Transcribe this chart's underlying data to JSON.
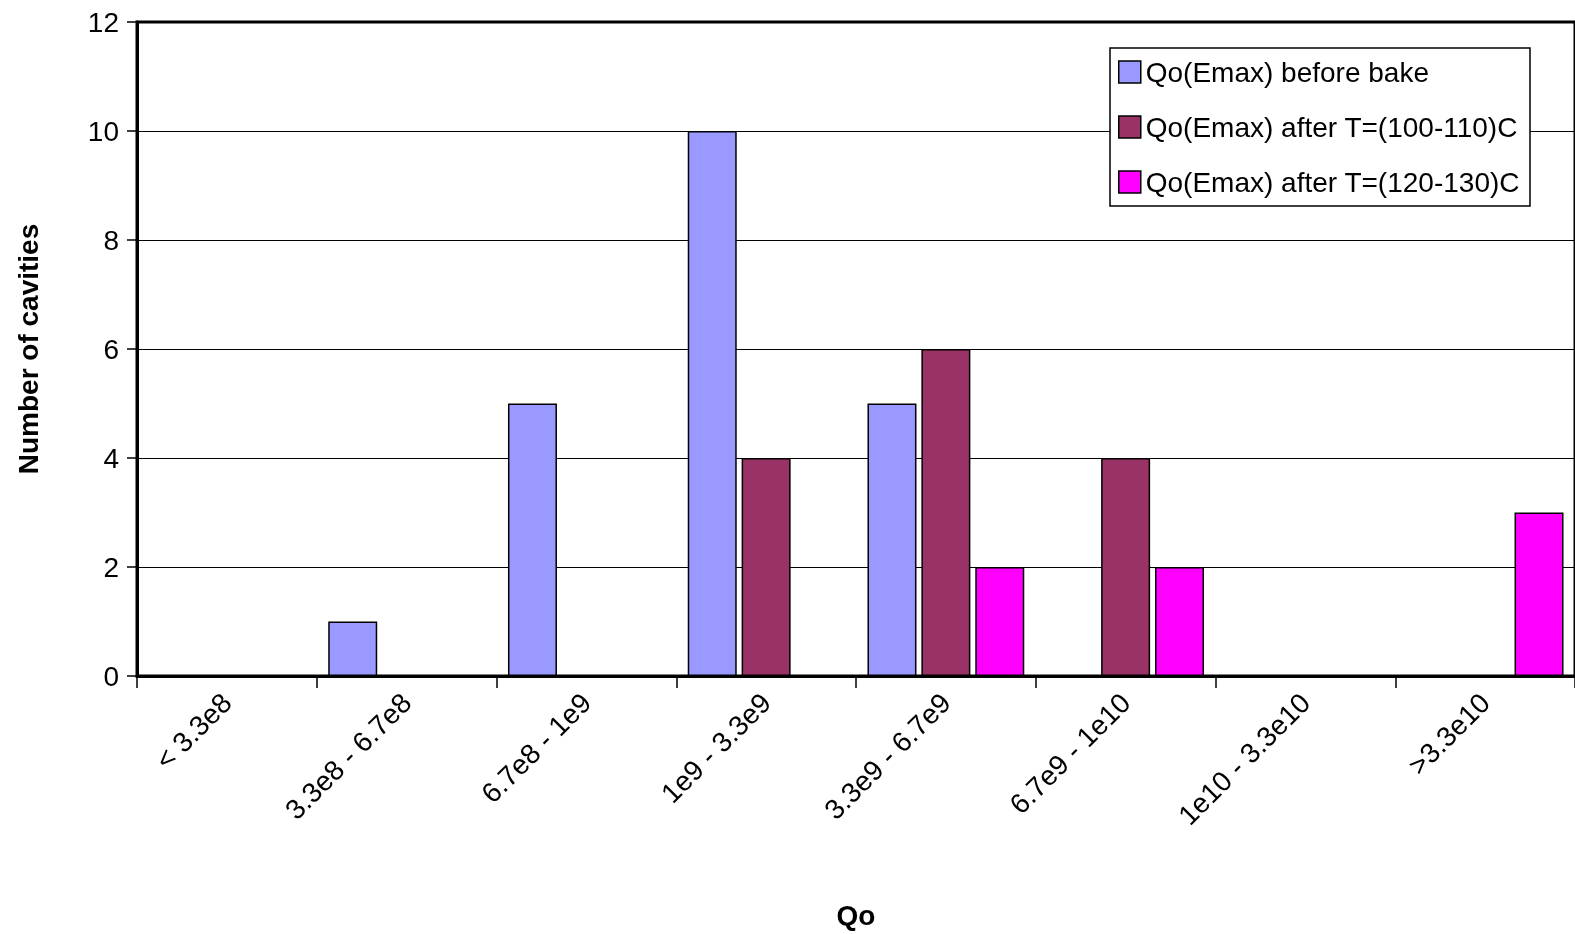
{
  "chart_data": {
    "type": "bar",
    "xlabel": "Qo",
    "ylabel": "Number of cavities",
    "categories": [
      "< 3.3e8",
      "3.3e8 - 6.7e8",
      "6.7e8 - 1e9",
      "1e9 - 3.3e9",
      "3.3e9 - 6.7e9",
      "6.7e9 - 1e10",
      "1e10 - 3.3e10",
      ">3.3e10"
    ],
    "series": [
      {
        "name": "Qo(Emax) before bake",
        "color": "#9999ff",
        "values": [
          0,
          1,
          5,
          10,
          5,
          0,
          0,
          0
        ]
      },
      {
        "name": "Qo(Emax) after T=(100-110)C",
        "color": "#993366",
        "values": [
          0,
          0,
          0,
          4,
          6,
          4,
          0,
          0
        ]
      },
      {
        "name": "Qo(Emax) after T=(120-130)C",
        "color": "#ff00ff",
        "values": [
          0,
          0,
          0,
          0,
          2,
          2,
          0,
          3
        ]
      }
    ],
    "ylim": [
      0,
      12
    ],
    "yticks": [
      0,
      2,
      4,
      6,
      8,
      10,
      12
    ],
    "grid": "y",
    "legend": "top right"
  }
}
